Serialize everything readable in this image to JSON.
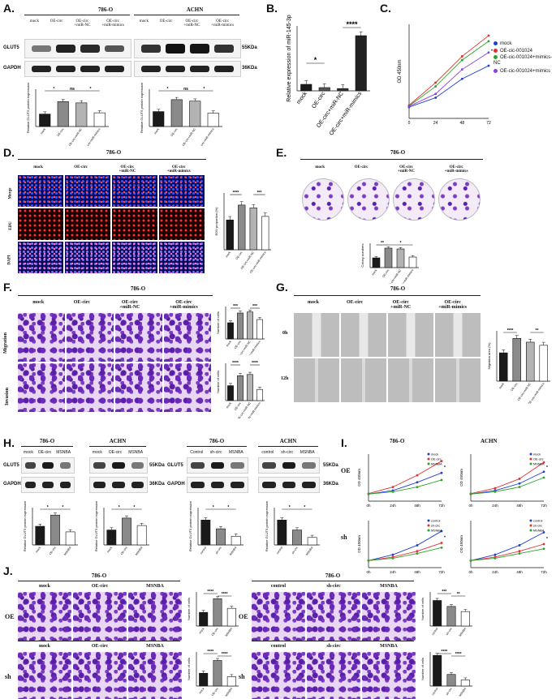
{
  "panels": {
    "A": {
      "label": "A.",
      "cell_786": "786-O",
      "cell_achn": "ACHN",
      "lanes": [
        "mock",
        "OE-circ",
        "OE-circ\n+miR-NC",
        "OE-circ\n+miR-mimics"
      ],
      "rows": [
        "GLUT5",
        "GAPDH"
      ],
      "kda": [
        "55KDa",
        "36KDa"
      ],
      "ylabel_786": "Relative GLUT5 protein expression",
      "ylabel_achn": "Relative GLUT5 protein expression",
      "ticks": [
        "mock",
        "OE-circ",
        "OE-circ+miR-NC",
        "OE-circ+miR-mimics"
      ],
      "sig_786": [
        "*",
        "ns",
        "*"
      ],
      "sig_achn": [
        "*",
        "ns",
        "*"
      ]
    },
    "B": {
      "label": "B.",
      "ylabel": "Relative expression of miR-145-3p",
      "sig": [
        "*",
        "****"
      ]
    },
    "C": {
      "label": "C.",
      "ylabel": "OD 450nm",
      "legend": [
        "mock",
        "OE-cic-001024",
        "OE-cic-001024+mimics-NC",
        "OE-cic-001024+mimics"
      ]
    },
    "D": {
      "label": "D.",
      "cell": "786-O",
      "cols": [
        "mock",
        "OE-circ",
        "OE-circ\n+miR-NC",
        "OE-circ\n+miR-mimics"
      ],
      "rows": [
        "Merge",
        "EDU",
        "DAPI"
      ],
      "ylabel": "EDU proportion (%)",
      "sig": [
        "****",
        "***"
      ]
    },
    "E": {
      "label": "E.",
      "cell": "786-O",
      "cols": [
        "mock",
        "OE-circ",
        "OE-circ\n+miR-NC",
        "OE-circ\n+miR-mimics"
      ],
      "ylabel": "Colony numbers",
      "sig": [
        "**",
        "*"
      ]
    },
    "F": {
      "label": "F.",
      "cell": "786-O",
      "cols": [
        "mock",
        "OE-circ",
        "OE-circ\n+miR-NC",
        "OE-circ\n+miR-mimics"
      ],
      "rows": [
        "Migration",
        "Invasion"
      ],
      "ylabel": "Number of cells",
      "sig_mig": [
        "***",
        "***"
      ],
      "sig_inv": [
        "****",
        "****"
      ]
    },
    "G": {
      "label": "G.",
      "cell": "786-O",
      "cols": [
        "mock",
        "OE-circ",
        "OE-circ\n+miR-NC",
        "OE-circ\n+miR-mimics"
      ],
      "rows": [
        "0h",
        "12h"
      ],
      "ylabel": "Migration area (%)",
      "sig": [
        "****",
        "**"
      ]
    },
    "H": {
      "label": "H.",
      "blots": [
        {
          "cell": "786-O",
          "lanes": [
            "mock",
            "OE-circ",
            "MSNBA"
          ]
        },
        {
          "cell": "ACHN",
          "lanes": [
            "mock",
            "OE-circ",
            "MSNBA"
          ]
        },
        {
          "cell": "786-O",
          "lanes": [
            "Control",
            "sh-circ",
            "MSNBA"
          ]
        },
        {
          "cell": "ACHN",
          "lanes": [
            "control",
            "sh-circ",
            "MSNBA"
          ]
        }
      ],
      "rows": [
        "GLUT5",
        "GAPDH"
      ],
      "kda": [
        "55KDa",
        "36KDa"
      ],
      "ylabel": "Relative GLUT5 protein expression",
      "sig": [
        "*",
        "*"
      ]
    },
    "I": {
      "label": "I.",
      "cells": [
        "786-O",
        "ACHN"
      ],
      "rows": [
        "OE",
        "sh"
      ],
      "ylabel": "OD 450nm",
      "xticks": [
        "0h",
        "24h",
        "48h",
        "72h"
      ],
      "legend_oe": [
        "mock",
        "OE-circ",
        "MSNBA"
      ],
      "legend_sh": [
        "control",
        "sh-circ",
        "MSNBA"
      ]
    },
    "J": {
      "label": "J.",
      "cells": [
        "786-O",
        "ACHN"
      ],
      "rows": [
        "OE",
        "sh"
      ],
      "cols_oe": [
        "mock",
        "OE-circ",
        "MSNBA"
      ],
      "cols_sh": [
        "control",
        "sh-circ",
        "MSNBA"
      ],
      "ylabel": "Number of cells",
      "sig_pair": [
        "****",
        "****"
      ],
      "sig_sh_786": [
        "***",
        "**"
      ],
      "sig_sh_achn": [
        "****",
        "****"
      ]
    }
  },
  "chart_data": [
    {
      "type": "bar",
      "panel": "A-786-O",
      "categories": [
        "mock",
        "OE-circ",
        "OE-circ+miR-NC",
        "OE-circ+miR-mimics"
      ],
      "values": [
        1.0,
        2.0,
        1.9,
        1.1
      ],
      "ylim": [
        0,
        3
      ]
    },
    {
      "type": "bar",
      "panel": "A-ACHN",
      "categories": [
        "mock",
        "OE-circ",
        "OE-circ+miR-NC",
        "OE-circ+miR-mimics"
      ],
      "values": [
        1.0,
        1.8,
        1.7,
        0.9
      ],
      "ylim": [
        0,
        2.5
      ]
    },
    {
      "type": "bar",
      "panel": "B",
      "categories": [
        "mock",
        "OE-circ",
        "OE-circ+miR-NC",
        "OE-circ+miR-mimics"
      ],
      "values": [
        1.0,
        0.5,
        0.35,
        8.5
      ],
      "ylim": [
        0,
        10
      ]
    },
    {
      "type": "line",
      "panel": "C",
      "x": [
        0,
        24,
        48,
        72
      ],
      "xlim": [
        0,
        72
      ],
      "ylim": [
        0,
        2.5
      ],
      "series": [
        {
          "name": "mock",
          "values": [
            0.3,
            0.55,
            1.05,
            1.4
          ],
          "color": "#1f3fd1"
        },
        {
          "name": "OE-cic-001024",
          "values": [
            0.35,
            0.95,
            1.65,
            2.2
          ],
          "color": "#e23030"
        },
        {
          "name": "OE-cic-001024+mimics-NC",
          "values": [
            0.33,
            0.85,
            1.55,
            2.05
          ],
          "color": "#2aa52a"
        },
        {
          "name": "OE-cic-001024+mimics",
          "values": [
            0.32,
            0.65,
            1.3,
            1.75
          ],
          "color": "#8b3fd9"
        }
      ]
    },
    {
      "type": "bar",
      "panel": "D",
      "categories": [
        "mock",
        "OE-circ",
        "OE-circ+miR-NC",
        "OE-circ+miR-mimics"
      ],
      "values": [
        42,
        63,
        59,
        47
      ],
      "ylim": [
        0,
        80
      ]
    },
    {
      "type": "bar",
      "panel": "E",
      "categories": [
        "mock",
        "OE-circ",
        "OE-circ+miR-NC",
        "OE-circ+miR-mimics"
      ],
      "values": [
        120,
        240,
        230,
        130
      ],
      "ylim": [
        0,
        300
      ]
    },
    {
      "type": "bar",
      "panel": "F-Migration",
      "categories": [
        "mock",
        "OE-circ",
        "OE-circ+miR-NC",
        "OE-circ+miR-mimics"
      ],
      "values": [
        150,
        240,
        250,
        180
      ],
      "ylim": [
        0,
        300
      ]
    },
    {
      "type": "bar",
      "panel": "F-Invasion",
      "categories": [
        "mock",
        "OE-circ",
        "OE-circ+miR-NC",
        "OE-circ+miR-mimics"
      ],
      "values": [
        120,
        200,
        210,
        90
      ],
      "ylim": [
        0,
        300
      ]
    },
    {
      "type": "bar",
      "panel": "G",
      "categories": [
        "mock",
        "OE-circ",
        "OE-circ+miR-NC",
        "OE-circ+miR-mimics"
      ],
      "values": [
        45,
        68,
        62,
        57
      ],
      "ylim": [
        0,
        80
      ]
    },
    {
      "type": "bar",
      "panel": "H-786-O-OE",
      "categories": [
        "mock",
        "OE-circ",
        "MSNBA"
      ],
      "values": [
        1.0,
        1.6,
        0.7
      ],
      "ylim": [
        0,
        2
      ]
    },
    {
      "type": "bar",
      "panel": "H-ACHN-OE",
      "categories": [
        "mock",
        "OE-circ",
        "MSNBA"
      ],
      "values": [
        1.0,
        1.8,
        1.3
      ],
      "ylim": [
        0,
        2.5
      ]
    },
    {
      "type": "bar",
      "panel": "H-786-O-sh",
      "categories": [
        "control",
        "sh-circ",
        "MSNBA"
      ],
      "values": [
        1.0,
        0.65,
        0.35
      ],
      "ylim": [
        0,
        1.5
      ]
    },
    {
      "type": "bar",
      "panel": "H-ACHN-sh",
      "categories": [
        "control",
        "sh-circ",
        "MSNBA"
      ],
      "values": [
        1.0,
        0.6,
        0.3
      ],
      "ylim": [
        0,
        1.5
      ]
    },
    {
      "type": "line",
      "panel": "I-OE-786-O",
      "x": [
        0,
        24,
        48,
        72
      ],
      "ylim": [
        0,
        2
      ],
      "series": [
        {
          "name": "mock",
          "values": [
            0.3,
            0.45,
            0.8,
            1.2
          ],
          "color": "#1f3fd1"
        },
        {
          "name": "OE-circ",
          "values": [
            0.32,
            0.6,
            1.1,
            1.7
          ],
          "color": "#e23030"
        },
        {
          "name": "MSNBA",
          "values": [
            0.3,
            0.4,
            0.6,
            0.9
          ],
          "color": "#2aa52a"
        }
      ]
    },
    {
      "type": "line",
      "panel": "I-OE-ACHN",
      "x": [
        0,
        24,
        48,
        72
      ],
      "ylim": [
        0,
        2
      ],
      "series": [
        {
          "name": "mock",
          "values": [
            0.3,
            0.45,
            0.75,
            1.25
          ],
          "color": "#1f3fd1"
        },
        {
          "name": "OE-circ",
          "values": [
            0.32,
            0.55,
            0.95,
            1.65
          ],
          "color": "#e23030"
        },
        {
          "name": "MSNBA",
          "values": [
            0.3,
            0.4,
            0.6,
            1.0
          ],
          "color": "#2aa52a"
        }
      ]
    },
    {
      "type": "line",
      "panel": "I-sh-786-O",
      "x": [
        0,
        24,
        48,
        72
      ],
      "ylim": [
        0,
        2
      ],
      "series": [
        {
          "name": "control",
          "values": [
            0.3,
            0.55,
            0.95,
            1.55
          ],
          "color": "#1f3fd1"
        },
        {
          "name": "sh-circ",
          "values": [
            0.3,
            0.45,
            0.7,
            1.05
          ],
          "color": "#e23030"
        },
        {
          "name": "MSNBA",
          "values": [
            0.3,
            0.4,
            0.6,
            0.85
          ],
          "color": "#2aa52a"
        }
      ]
    },
    {
      "type": "line",
      "panel": "I-sh-ACHN",
      "x": [
        0,
        24,
        48,
        72
      ],
      "ylim": [
        0,
        2
      ],
      "series": [
        {
          "name": "control",
          "values": [
            0.3,
            0.55,
            0.95,
            1.5
          ],
          "color": "#1f3fd1"
        },
        {
          "name": "sh-circ",
          "values": [
            0.3,
            0.45,
            0.7,
            1.0
          ],
          "color": "#e23030"
        },
        {
          "name": "MSNBA",
          "values": [
            0.3,
            0.4,
            0.6,
            0.8
          ],
          "color": "#2aa52a"
        }
      ]
    },
    {
      "type": "bar",
      "panel": "J-OE-786-O",
      "categories": [
        "mock",
        "OE-circ",
        "MSNBA"
      ],
      "values": [
        200,
        400,
        260
      ],
      "ylim": [
        0,
        500
      ]
    },
    {
      "type": "bar",
      "panel": "J-OE-ACHN",
      "categories": [
        "mock",
        "OE-circ",
        "MSNBA"
      ],
      "values": [
        150,
        300,
        110
      ],
      "ylim": [
        0,
        400
      ]
    },
    {
      "type": "bar",
      "panel": "J-sh-786-O",
      "categories": [
        "control",
        "sh-circ",
        "MSNBA"
      ],
      "values": [
        300,
        230,
        170
      ],
      "ylim": [
        0,
        400
      ]
    },
    {
      "type": "bar",
      "panel": "J-sh-ACHN",
      "categories": [
        "control",
        "sh-circ",
        "MSNBA"
      ],
      "values": [
        450,
        170,
        90
      ],
      "ylim": [
        0,
        500
      ]
    }
  ]
}
